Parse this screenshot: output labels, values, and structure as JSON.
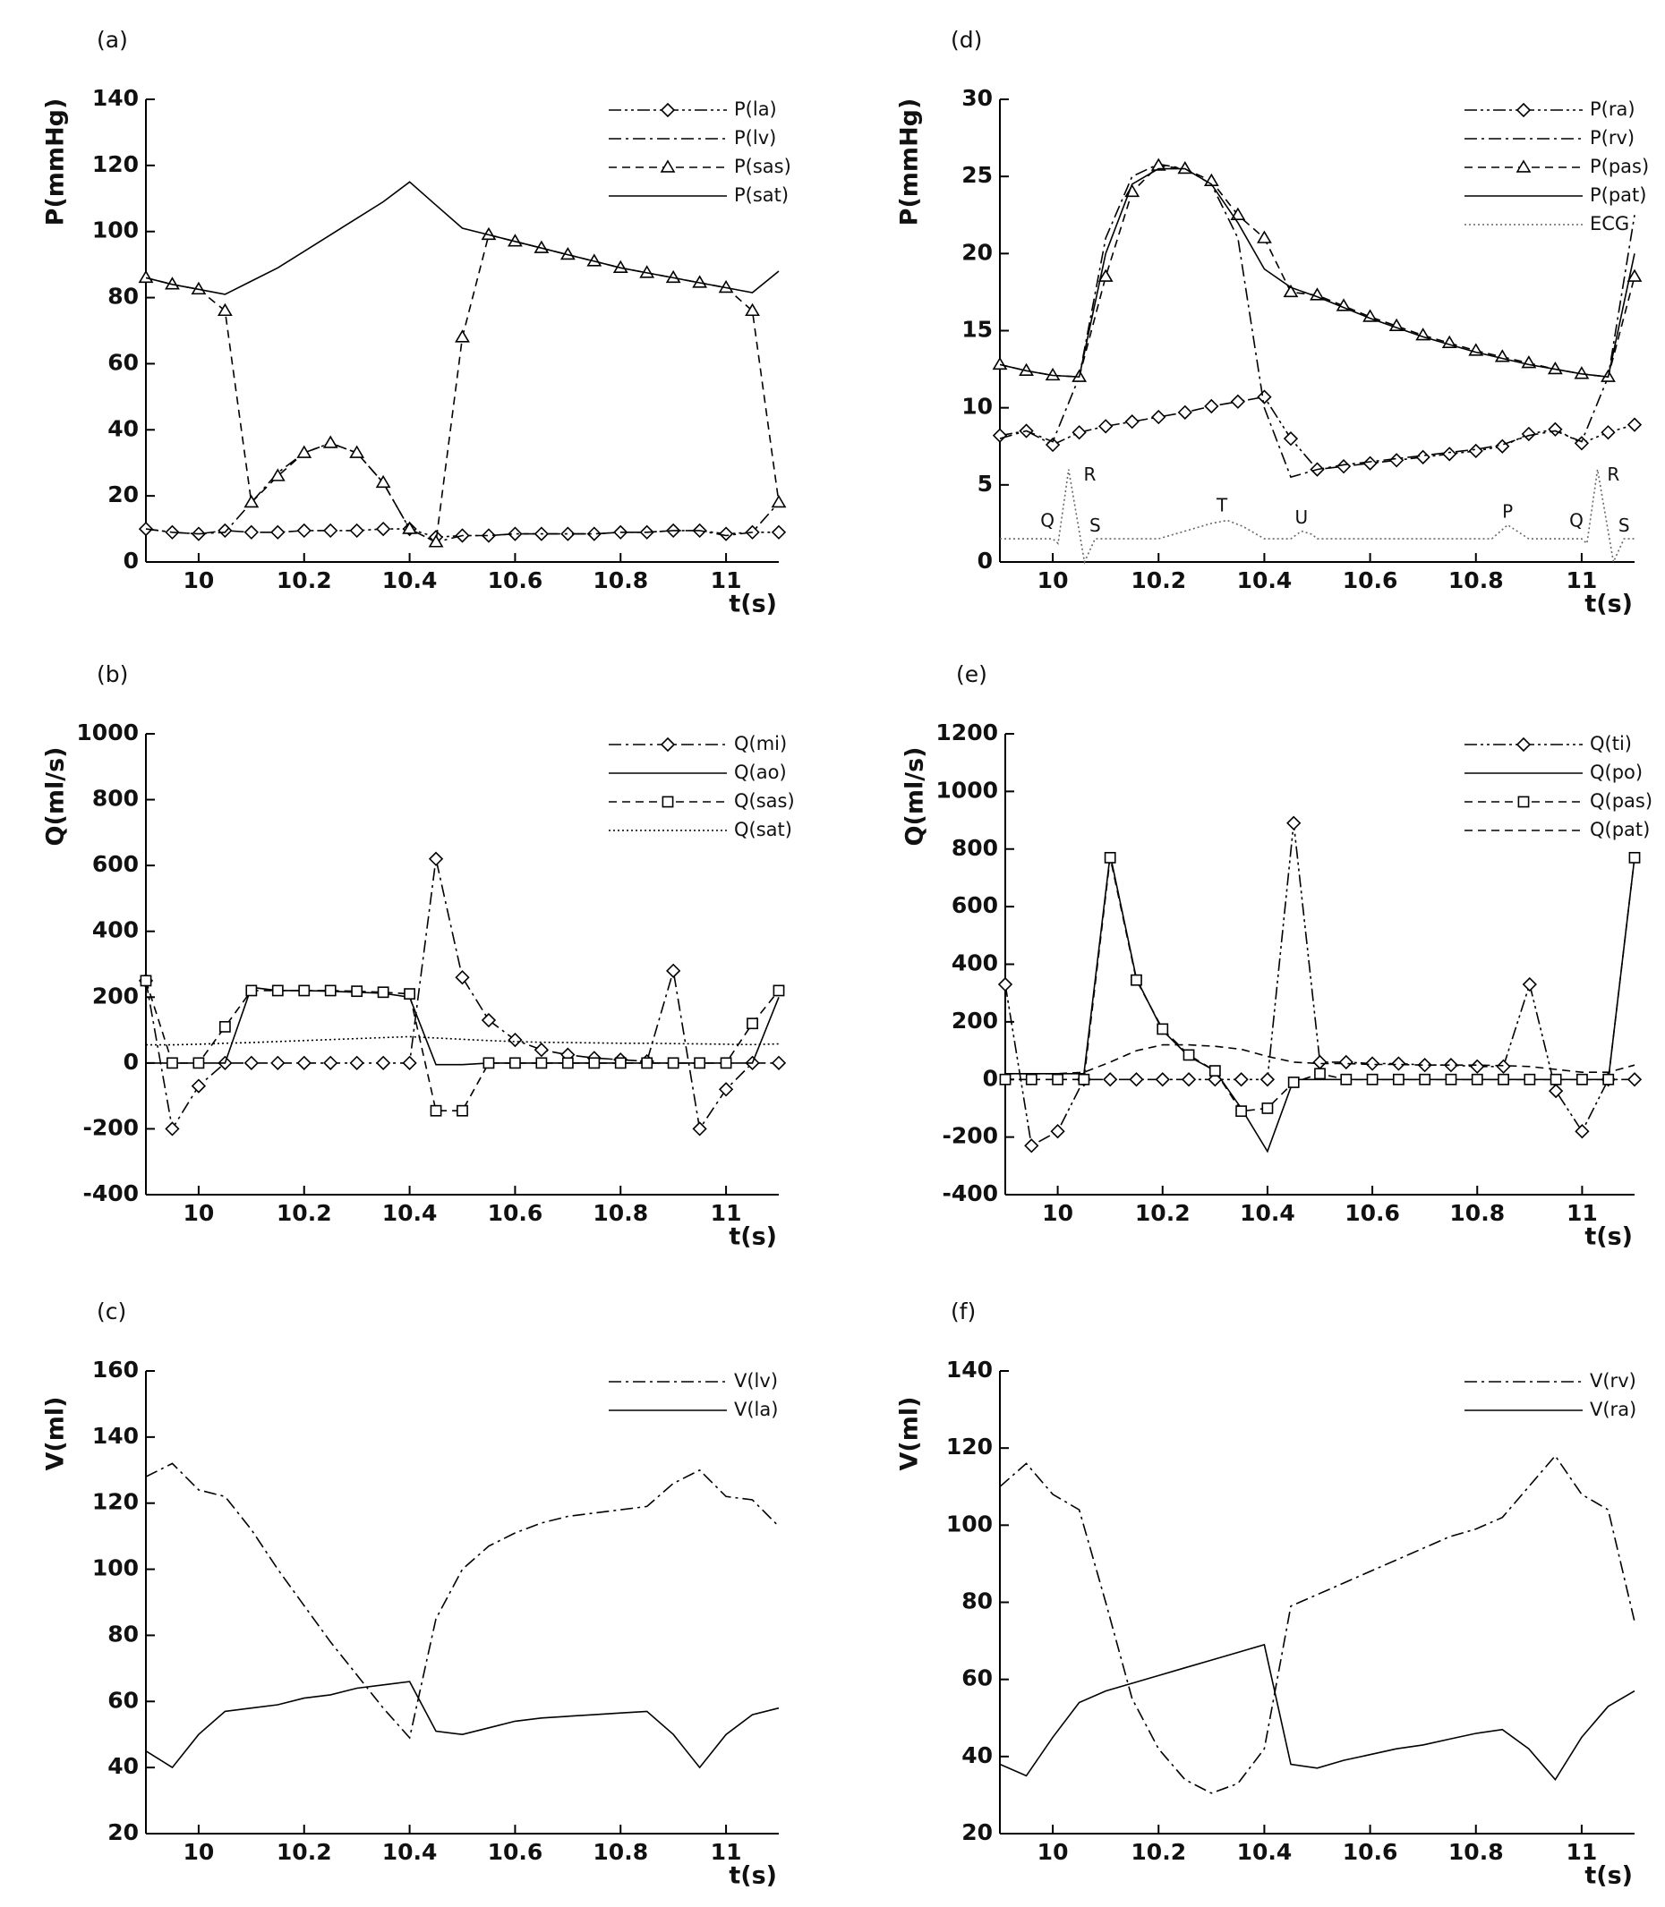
{
  "chart_data": [
    {
      "type": "line",
      "panel": "(a)",
      "ylabel": "P(mmHg)",
      "xlabel": "t(s)",
      "xlim": [
        9.9,
        11.1
      ],
      "xticks": [
        10,
        10.2,
        10.4,
        10.6,
        10.8,
        11
      ],
      "ylim": [
        0,
        140
      ],
      "yticks": [
        0,
        20,
        40,
        60,
        80,
        100,
        120,
        140
      ],
      "legend": "upper right",
      "x": [
        9.9,
        9.95,
        10.0,
        10.05,
        10.1,
        10.15,
        10.2,
        10.25,
        10.3,
        10.35,
        10.4,
        10.45,
        10.5,
        10.55,
        10.6,
        10.65,
        10.7,
        10.75,
        10.8,
        10.85,
        10.9,
        10.95,
        11.0,
        11.05,
        11.1
      ],
      "series": [
        {
          "name": "P(la)",
          "color": "#000000",
          "dash": "dash-dot-dot",
          "marker": "diamond",
          "values": [
            10,
            9,
            8.5,
            9.5,
            9,
            9,
            9.5,
            9.5,
            9.5,
            10,
            10,
            7.5,
            8,
            8,
            8.5,
            8.5,
            8.5,
            8.5,
            9,
            9,
            9.5,
            9.5,
            8.5,
            9,
            9
          ]
        },
        {
          "name": "P(lv)",
          "color": "#000000",
          "dash": "dash-dot",
          "marker": "none",
          "values": [
            10,
            9,
            8.5,
            9,
            18,
            27,
            33,
            36,
            33,
            24,
            10,
            6,
            8,
            8,
            8.5,
            8.5,
            8.5,
            8.5,
            9,
            9,
            9.5,
            9.5,
            8,
            9,
            18
          ]
        },
        {
          "name": "P(sas)",
          "color": "#000000",
          "dash": "dashed",
          "marker": "triangle",
          "values": [
            86,
            84,
            82.5,
            76,
            18,
            26,
            33,
            36,
            33,
            24,
            10,
            6,
            68,
            99,
            97,
            95,
            93,
            91,
            89,
            87.5,
            86,
            84.5,
            83,
            76,
            18
          ]
        },
        {
          "name": "P(sat)",
          "color": "#000000",
          "dash": "solid",
          "marker": "none",
          "values": [
            86,
            84,
            82.5,
            81,
            85,
            89,
            94,
            99,
            104,
            109,
            115,
            108,
            101,
            99,
            97,
            95,
            93,
            91,
            89,
            87.5,
            86,
            84.5,
            83,
            81.5,
            88
          ]
        }
      ]
    },
    {
      "type": "line",
      "panel": "(b)",
      "ylabel": "Q(ml/s)",
      "xlabel": "t(s)",
      "xlim": [
        9.9,
        11.1
      ],
      "xticks": [
        10,
        10.2,
        10.4,
        10.6,
        10.8,
        11
      ],
      "ylim": [
        -400,
        1000
      ],
      "yticks": [
        -400,
        -200,
        0,
        200,
        400,
        600,
        800,
        1000
      ],
      "legend": "upper right",
      "x": [
        9.9,
        9.95,
        10.0,
        10.05,
        10.1,
        10.15,
        10.2,
        10.25,
        10.3,
        10.35,
        10.4,
        10.45,
        10.5,
        10.55,
        10.6,
        10.65,
        10.7,
        10.75,
        10.8,
        10.85,
        10.9,
        10.95,
        11.0,
        11.05,
        11.1
      ],
      "series": [
        {
          "name": "Q(mi)",
          "color": "#000000",
          "dash": "dash-dot",
          "marker": "diamond",
          "values": [
            250,
            -200,
            -70,
            0,
            0,
            0,
            0,
            0,
            0,
            0,
            0,
            620,
            260,
            130,
            70,
            40,
            25,
            15,
            10,
            5,
            280,
            -200,
            -80,
            0,
            0
          ]
        },
        {
          "name": "Q(ao)",
          "color": "#000000",
          "dash": "solid",
          "marker": "none",
          "values": [
            0,
            0,
            0,
            0,
            230,
            220,
            220,
            218,
            215,
            212,
            200,
            -5,
            -5,
            0,
            0,
            0,
            0,
            0,
            0,
            0,
            0,
            0,
            0,
            0,
            200
          ]
        },
        {
          "name": "Q(sas)",
          "color": "#000000",
          "dash": "dashed",
          "marker": "square",
          "values": [
            250,
            0,
            0,
            110,
            220,
            220,
            220,
            220,
            218,
            215,
            210,
            -145,
            -145,
            0,
            0,
            0,
            0,
            0,
            0,
            0,
            0,
            0,
            0,
            120,
            220
          ]
        },
        {
          "name": "Q(sat)",
          "color": "#000000",
          "dash": "dotted",
          "marker": "none",
          "values": [
            55,
            55,
            57,
            60,
            62,
            65,
            68,
            71,
            74,
            77,
            80,
            76,
            72,
            68,
            65,
            63,
            62,
            61,
            60,
            60,
            59,
            58,
            57,
            56,
            58
          ]
        }
      ]
    },
    {
      "type": "line",
      "panel": "(c)",
      "ylabel": "V(ml)",
      "xlabel": "t(s)",
      "xlim": [
        9.9,
        11.1
      ],
      "xticks": [
        10,
        10.2,
        10.4,
        10.6,
        10.8,
        11
      ],
      "ylim": [
        20,
        160
      ],
      "yticks": [
        20,
        40,
        60,
        80,
        100,
        120,
        140,
        160
      ],
      "legend": "upper right",
      "x": [
        9.9,
        9.95,
        10.0,
        10.05,
        10.1,
        10.15,
        10.2,
        10.25,
        10.3,
        10.35,
        10.4,
        10.45,
        10.5,
        10.55,
        10.6,
        10.65,
        10.7,
        10.75,
        10.8,
        10.85,
        10.9,
        10.95,
        11.0,
        11.05,
        11.1
      ],
      "series": [
        {
          "name": "V(lv)",
          "color": "#000000",
          "dash": "dash-dot",
          "marker": "none",
          "values": [
            128,
            132,
            124,
            122,
            112,
            100,
            89,
            78,
            68,
            58,
            49,
            85,
            100,
            107,
            111,
            114,
            116,
            117,
            118,
            119,
            126,
            130,
            122,
            121,
            113
          ]
        },
        {
          "name": "V(la)",
          "color": "#000000",
          "dash": "solid",
          "marker": "none",
          "values": [
            45,
            40,
            50,
            57,
            58,
            59,
            61,
            62,
            64,
            65,
            66,
            51,
            50,
            52,
            54,
            55,
            55.5,
            56,
            56.5,
            57,
            50,
            40,
            50,
            56,
            58
          ]
        }
      ]
    },
    {
      "type": "line",
      "panel": "(d)",
      "ylabel": "P(mmHg)",
      "xlabel": "t(s)",
      "xlim": [
        9.9,
        11.1
      ],
      "xticks": [
        10,
        10.2,
        10.4,
        10.6,
        10.8,
        11
      ],
      "ylim": [
        0,
        30
      ],
      "yticks": [
        0,
        5,
        10,
        15,
        20,
        25,
        30
      ],
      "legend": "upper right",
      "x": [
        9.9,
        9.95,
        10.0,
        10.05,
        10.1,
        10.15,
        10.2,
        10.25,
        10.3,
        10.35,
        10.4,
        10.45,
        10.5,
        10.55,
        10.6,
        10.65,
        10.7,
        10.75,
        10.8,
        10.85,
        10.9,
        10.95,
        11.0,
        11.05,
        11.1
      ],
      "series": [
        {
          "name": "P(ra)",
          "color": "#000000",
          "dash": "dash-dot-dot",
          "marker": "diamond",
          "values": [
            8.2,
            8.5,
            7.6,
            8.4,
            8.8,
            9.1,
            9.4,
            9.7,
            10.1,
            10.4,
            10.7,
            8,
            6,
            6.2,
            6.4,
            6.6,
            6.8,
            7,
            7.2,
            7.5,
            8.3,
            8.6,
            7.7,
            8.4,
            8.9
          ]
        },
        {
          "name": "P(rv)",
          "color": "#000000",
          "dash": "dash-dot",
          "marker": "none",
          "values": [
            8,
            8.5,
            7.8,
            12,
            21,
            25,
            25.8,
            25.5,
            24.5,
            21,
            10,
            5.5,
            6,
            6.3,
            6.5,
            6.7,
            6.9,
            7.1,
            7.3,
            7.6,
            8.2,
            8.5,
            7.8,
            12,
            22.5
          ]
        },
        {
          "name": "P(pas)",
          "color": "#000000",
          "dash": "dashed",
          "marker": "triangle",
          "values": [
            12.8,
            12.4,
            12.1,
            12,
            18.5,
            24,
            25.7,
            25.5,
            24.7,
            22.5,
            21,
            17.5,
            17.3,
            16.6,
            15.9,
            15.3,
            14.7,
            14.2,
            13.7,
            13.3,
            12.9,
            12.5,
            12.2,
            12,
            18.5
          ]
        },
        {
          "name": "P(pat)",
          "color": "#000000",
          "dash": "solid",
          "marker": "none",
          "values": [
            12.8,
            12.4,
            12.1,
            12,
            20,
            24.5,
            25.5,
            25.5,
            24.5,
            22,
            19,
            17.8,
            17.2,
            16.5,
            15.8,
            15.2,
            14.6,
            14.1,
            13.6,
            13.2,
            12.8,
            12.5,
            12.2,
            12,
            20
          ]
        },
        {
          "name": "ECG",
          "color": "#666666",
          "dash": "dotted",
          "marker": "none",
          "x": [
            9.9,
            10.0,
            10.01,
            10.03,
            10.06,
            10.08,
            10.2,
            10.3,
            10.33,
            10.36,
            10.4,
            10.45,
            10.47,
            10.49,
            10.5,
            10.83,
            10.86,
            10.9,
            11.0,
            11.01,
            11.03,
            11.06,
            11.08,
            11.1
          ],
          "values": [
            1.5,
            1.5,
            1.2,
            6,
            0,
            1.5,
            1.5,
            2.5,
            2.7,
            2.3,
            1.5,
            1.5,
            2,
            1.8,
            1.5,
            1.5,
            2.4,
            1.5,
            1.5,
            1.2,
            6,
            0,
            1.5,
            1.5
          ]
        }
      ],
      "annotations": [
        {
          "text": "Q",
          "x": 9.99,
          "y": 2.6
        },
        {
          "text": "R",
          "x": 10.07,
          "y": 5.6
        },
        {
          "text": "S",
          "x": 10.08,
          "y": 2.3
        },
        {
          "text": "T",
          "x": 10.32,
          "y": 3.6
        },
        {
          "text": "U",
          "x": 10.47,
          "y": 2.8
        },
        {
          "text": "P",
          "x": 10.86,
          "y": 3.2
        },
        {
          "text": "Q",
          "x": 10.99,
          "y": 2.6
        },
        {
          "text": "R",
          "x": 11.06,
          "y": 5.6
        },
        {
          "text": "S",
          "x": 11.08,
          "y": 2.3
        }
      ]
    },
    {
      "type": "line",
      "panel": "(e)",
      "ylabel": "Q(ml/s)",
      "xlabel": "t(s)",
      "xlim": [
        9.9,
        11.1
      ],
      "xticks": [
        10,
        10.2,
        10.4,
        10.6,
        10.8,
        11
      ],
      "ylim": [
        -400,
        1200
      ],
      "yticks": [
        -400,
        -200,
        0,
        200,
        400,
        600,
        800,
        1000,
        1200
      ],
      "legend": "upper right",
      "x": [
        9.9,
        9.95,
        10.0,
        10.05,
        10.1,
        10.15,
        10.2,
        10.25,
        10.3,
        10.35,
        10.4,
        10.45,
        10.5,
        10.55,
        10.6,
        10.65,
        10.7,
        10.75,
        10.8,
        10.85,
        10.9,
        10.95,
        11.0,
        11.05,
        11.1
      ],
      "series": [
        {
          "name": "Q(ti)",
          "color": "#000000",
          "dash": "dash-dot-dot",
          "marker": "diamond",
          "values": [
            330,
            -230,
            -180,
            0,
            0,
            0,
            0,
            0,
            0,
            0,
            0,
            890,
            60,
            60,
            55,
            55,
            50,
            50,
            45,
            45,
            330,
            -40,
            -180,
            0,
            0
          ]
        },
        {
          "name": "Q(po)",
          "color": "#000000",
          "dash": "solid",
          "marker": "none",
          "values": [
            20,
            20,
            20,
            20,
            780,
            350,
            170,
            80,
            30,
            -100,
            -250,
            0,
            0,
            0,
            0,
            0,
            0,
            0,
            0,
            0,
            0,
            0,
            0,
            0,
            770
          ]
        },
        {
          "name": "Q(pas)",
          "color": "#000000",
          "dash": "dashed",
          "marker": "square",
          "values": [
            0,
            0,
            0,
            0,
            770,
            345,
            175,
            85,
            30,
            -110,
            -100,
            -10,
            20,
            0,
            0,
            0,
            0,
            0,
            0,
            0,
            0,
            0,
            0,
            0,
            770
          ]
        },
        {
          "name": "Q(pat)",
          "color": "#000000",
          "dash": "dashed",
          "marker": "none",
          "values": [
            20,
            20,
            20,
            25,
            60,
            100,
            120,
            120,
            115,
            105,
            80,
            60,
            55,
            55,
            52,
            52,
            50,
            50,
            50,
            48,
            45,
            35,
            25,
            25,
            50
          ]
        }
      ]
    },
    {
      "type": "line",
      "panel": "(f)",
      "ylabel": "V(ml)",
      "xlabel": "t(s)",
      "xlim": [
        9.9,
        11.1
      ],
      "xticks": [
        10,
        10.2,
        10.4,
        10.6,
        10.8,
        11
      ],
      "ylim": [
        20,
        140
      ],
      "yticks": [
        20,
        40,
        60,
        80,
        100,
        120,
        140
      ],
      "legend": "upper right",
      "x": [
        9.9,
        9.95,
        10.0,
        10.05,
        10.1,
        10.15,
        10.2,
        10.25,
        10.3,
        10.35,
        10.4,
        10.45,
        10.5,
        10.55,
        10.6,
        10.65,
        10.7,
        10.75,
        10.8,
        10.85,
        10.9,
        10.95,
        11.0,
        11.05,
        11.1
      ],
      "series": [
        {
          "name": "V(rv)",
          "color": "#000000",
          "dash": "dash-dot",
          "marker": "none",
          "values": [
            110,
            116,
            108,
            104,
            80,
            55,
            42,
            34,
            30.5,
            33,
            42,
            79,
            82,
            85,
            88,
            91,
            94,
            97,
            99,
            102,
            110,
            118,
            108,
            104,
            75
          ]
        },
        {
          "name": "V(ra)",
          "color": "#000000",
          "dash": "solid",
          "marker": "none",
          "values": [
            38,
            35,
            45,
            54,
            57,
            59,
            61,
            63,
            65,
            67,
            69,
            38,
            37,
            39,
            40.5,
            42,
            43,
            44.5,
            46,
            47,
            42,
            34,
            45,
            53,
            57
          ]
        }
      ]
    }
  ]
}
